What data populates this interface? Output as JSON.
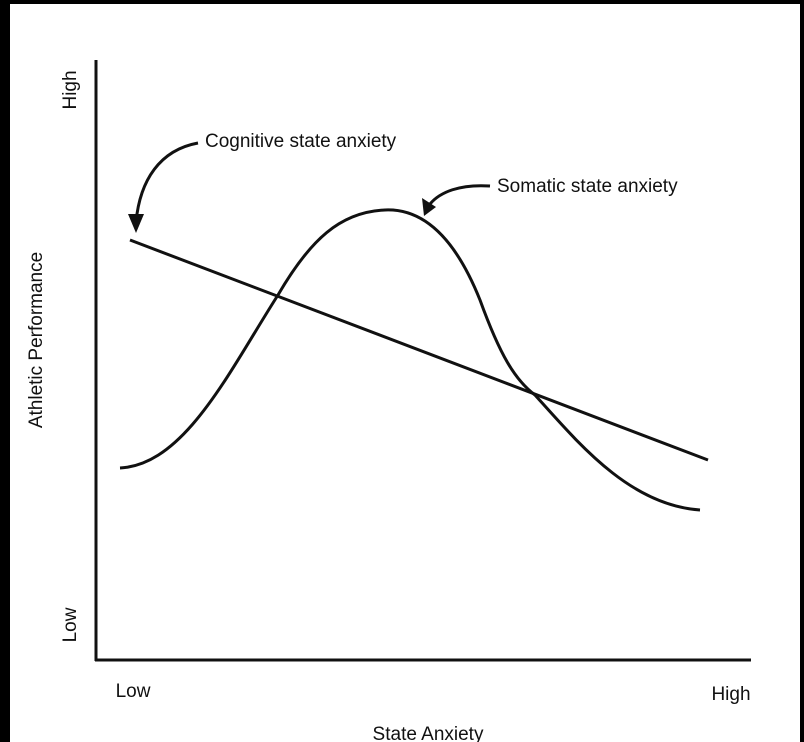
{
  "diagram": {
    "y_axis": {
      "label": "Athletic Performance",
      "low": "Low",
      "high": "High"
    },
    "x_axis": {
      "label": "State Anxiety",
      "low": "Low",
      "high": "High"
    },
    "annotations": [
      "Cognitive state anxiety",
      "Somatic state anxiety"
    ]
  }
}
